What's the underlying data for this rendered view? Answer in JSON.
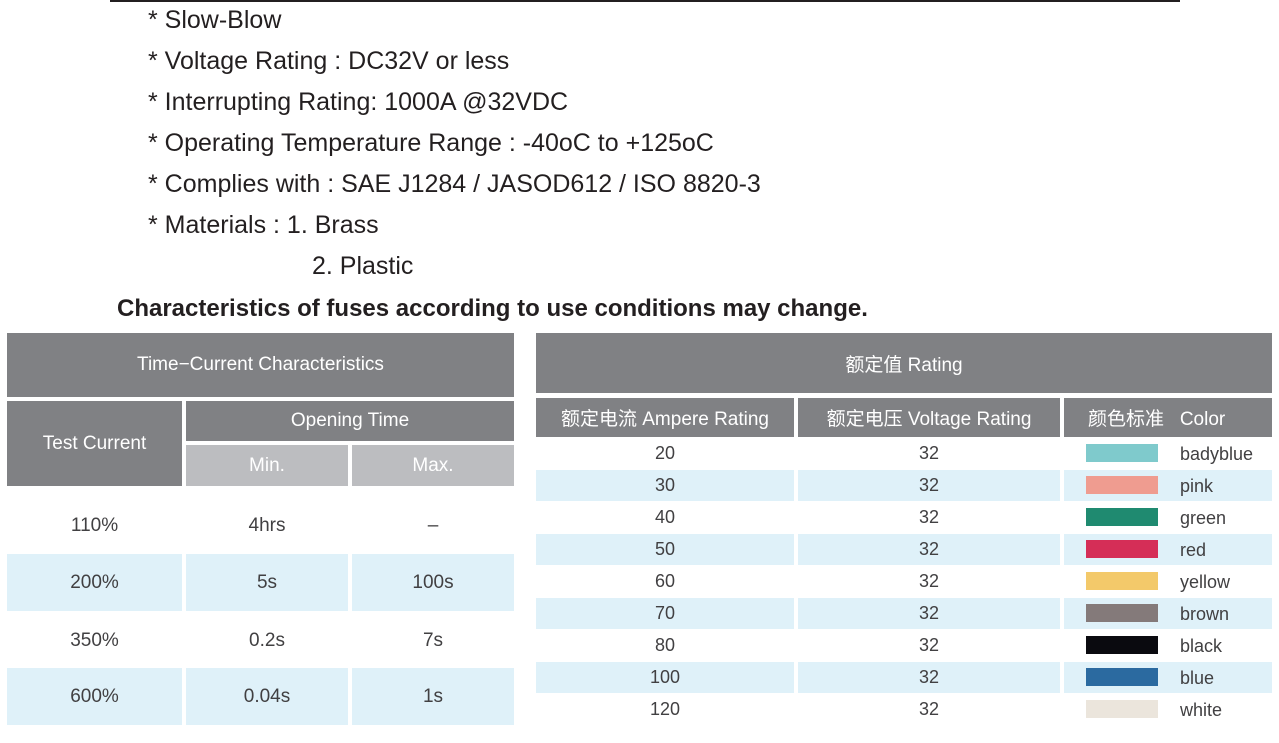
{
  "specs": [
    "* Slow-Blow",
    "* Voltage Rating : DC32V or less",
    "* Interrupting Rating: 1000A @32VDC",
    "* Operating Temperature Range : -40oC to +125oC",
    "* Complies with : SAE J1284 / JASOD612 / ISO 8820-3",
    "* Materials : 1. Brass",
    "2. Plastic"
  ],
  "note": "Characteristics of fuses according to use conditions may change.",
  "time_current": {
    "title": "Time−Current Characteristics",
    "test_current_header": "Test Current",
    "opening_time_header": "Opening Time",
    "min_header": "Min.",
    "max_header": "Max.",
    "rows": [
      {
        "current": "110%",
        "min": "4hrs",
        "max": "–"
      },
      {
        "current": "200%",
        "min": "5s",
        "max": "100s"
      },
      {
        "current": "350%",
        "min": "0.2s",
        "max": "7s"
      },
      {
        "current": "600%",
        "min": "0.04s",
        "max": "1s"
      }
    ]
  },
  "rating": {
    "title": "额定值 Rating",
    "ampere_header": "额定电流 Ampere Rating",
    "voltage_header": "额定电压 Voltage Rating",
    "color_header": "颜色标准   Color",
    "rows": [
      {
        "ampere": "20",
        "voltage": "32",
        "color": "badyblue",
        "hex": "#7fcacc"
      },
      {
        "ampere": "30",
        "voltage": "32",
        "color": "pink",
        "hex": "#ef9c90"
      },
      {
        "ampere": "40",
        "voltage": "32",
        "color": "green",
        "hex": "#1f8a70"
      },
      {
        "ampere": "50",
        "voltage": "32",
        "color": "red",
        "hex": "#d52e57"
      },
      {
        "ampere": "60",
        "voltage": "32",
        "color": "yellow",
        "hex": "#f3c96a"
      },
      {
        "ampere": "70",
        "voltage": "32",
        "color": "brown",
        "hex": "#847a7a"
      },
      {
        "ampere": "80",
        "voltage": "32",
        "color": "black",
        "hex": "#0a0a0f"
      },
      {
        "ampere": "100",
        "voltage": "32",
        "color": "blue",
        "hex": "#2b6aa0"
      },
      {
        "ampere": "120",
        "voltage": "32",
        "color": "white",
        "hex": "#ebe5dc"
      }
    ]
  }
}
